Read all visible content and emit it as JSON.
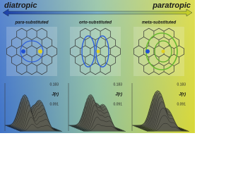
{
  "header": {
    "left": "diatropic",
    "right": "paratropic"
  },
  "panels": [
    {
      "label": "para-substituted",
      "top_tick": "0.183",
      "mid_tick": "0.091",
      "quantity": "J(r)"
    },
    {
      "label": "orto-substituted",
      "top_tick": "0.183",
      "mid_tick": "0.091",
      "quantity": "J(r)"
    },
    {
      "label": "meta-substituted",
      "top_tick": "0.183",
      "mid_tick": "0.091",
      "quantity": "J(r)"
    }
  ]
}
